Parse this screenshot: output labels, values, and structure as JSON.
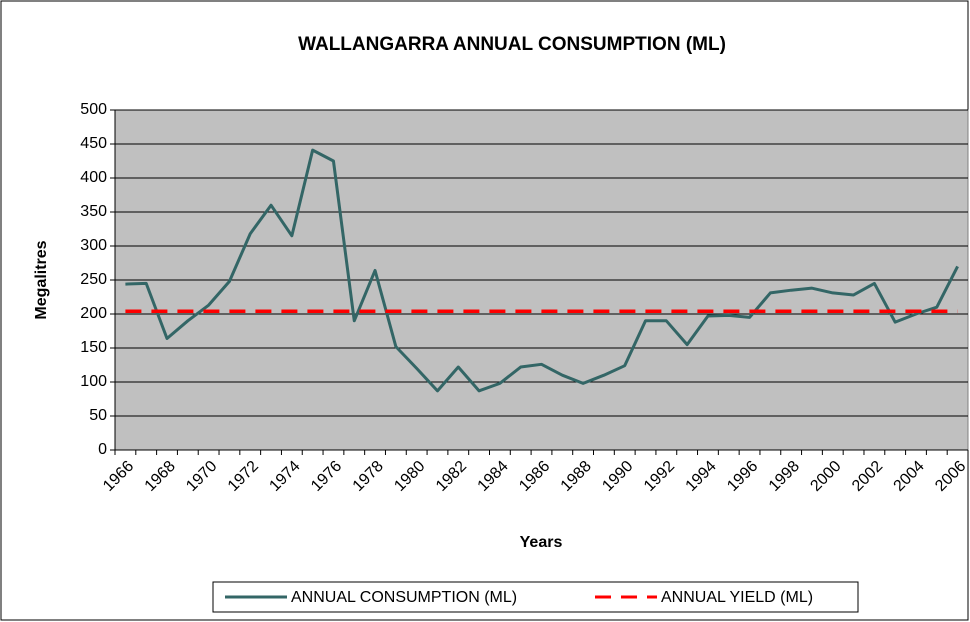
{
  "chart_data": {
    "type": "line",
    "title": "WALLANGARRA ANNUAL CONSUMPTION (ML)",
    "xlabel": "Years",
    "ylabel": "Megalitres",
    "categories": [
      "1966",
      null,
      "1968",
      null,
      "1970",
      null,
      "1972",
      null,
      "1974",
      null,
      "1976",
      null,
      "1978",
      null,
      "1980",
      null,
      "1982",
      null,
      "1984",
      null,
      "1986",
      null,
      "1988",
      null,
      "1990",
      null,
      "1992",
      null,
      "1994",
      null,
      "1996",
      null,
      "1998",
      null,
      "2000",
      null,
      "2002",
      null,
      "2004",
      null,
      "2006"
    ],
    "series": [
      {
        "name": "ANNUAL CONSUMPTION (ML)",
        "color": "#336666",
        "dashed": false,
        "values": [
          244,
          245,
          164,
          190,
          213,
          248,
          318,
          360,
          315,
          441,
          425,
          190,
          264,
          152,
          120,
          87,
          122,
          87,
          98,
          122,
          126,
          110,
          98,
          110,
          124,
          190,
          190,
          155,
          197,
          198,
          195,
          231,
          235,
          238,
          231,
          228,
          245,
          188,
          200,
          210,
          270
        ]
      },
      {
        "name": "ANNUAL YIELD (ML)",
        "color": "#ff0000",
        "dashed": true,
        "values": [
          204,
          204,
          204,
          204,
          204,
          204,
          204,
          204,
          204,
          204,
          204,
          204,
          204,
          204,
          204,
          204,
          204,
          204,
          204,
          204,
          204,
          204,
          204,
          204,
          204,
          204,
          204,
          204,
          204,
          204,
          204,
          204,
          204,
          204,
          204,
          204,
          204,
          204,
          204,
          204,
          204
        ]
      }
    ],
    "ylim": [
      0,
      500
    ],
    "yticks": [
      0,
      50,
      100,
      150,
      200,
      250,
      300,
      350,
      400,
      450,
      500
    ],
    "grid": true,
    "plot_background": "#c0c0c0",
    "legend": "bottom"
  }
}
